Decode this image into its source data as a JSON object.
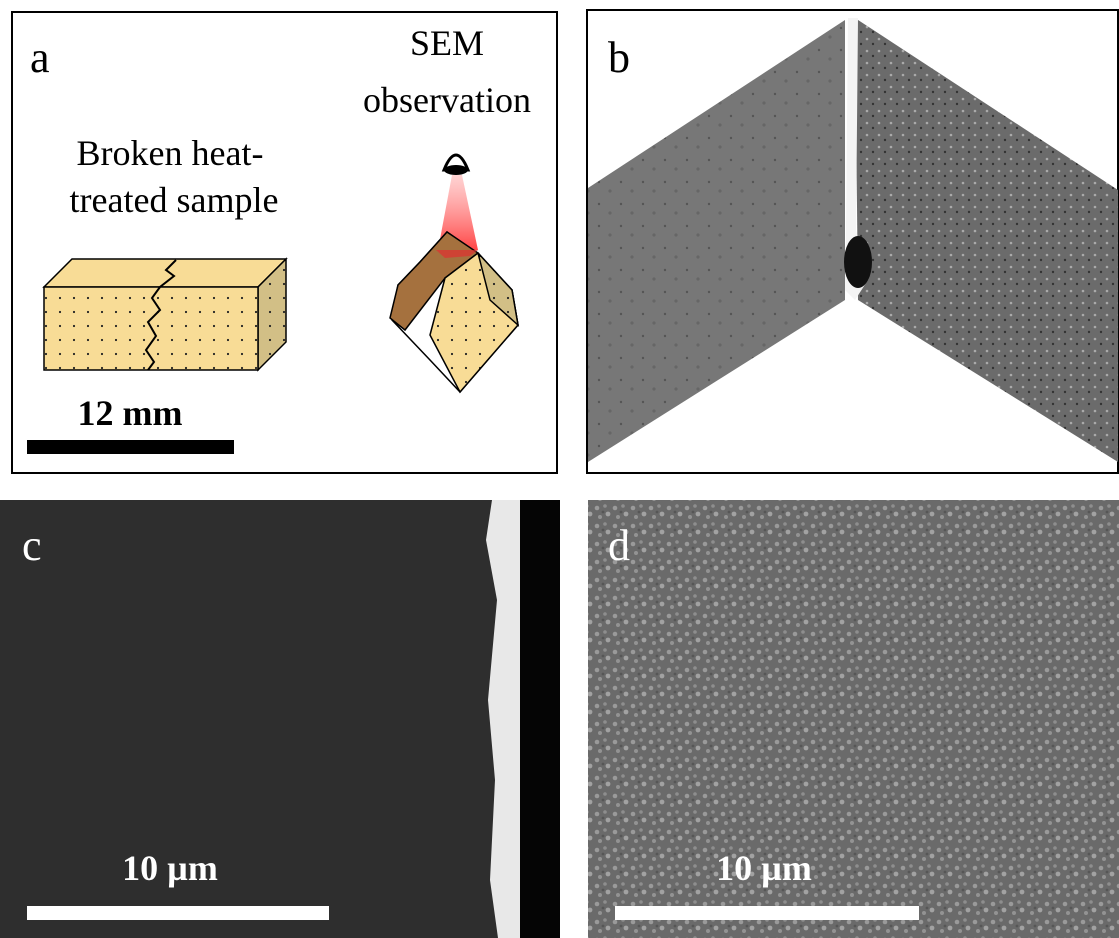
{
  "panels": [
    {
      "label": "a",
      "texts": [
        "SEM",
        "observation",
        "Broken heat-",
        "treated sample"
      ],
      "scale_bar": "12 mm"
    },
    {
      "label": "b"
    },
    {
      "label": "c",
      "scale_bar": "10 µm"
    },
    {
      "label": "d",
      "scale_bar": "10 µm"
    }
  ]
}
